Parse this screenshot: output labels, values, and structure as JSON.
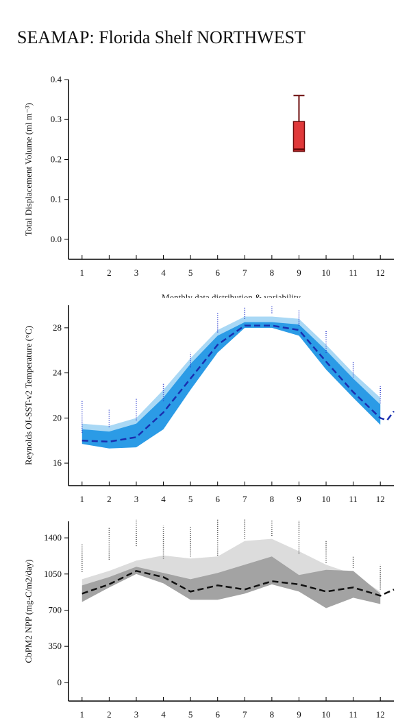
{
  "title": "SEAMAP: Florida Shelf NORTHWEST",
  "chart_data": [
    {
      "type": "box",
      "ylabel": "Total Displacement Volume (ml m⁻³)",
      "xlabel": "Monthly data distribution & variability",
      "xlim": [
        0.5,
        12.5
      ],
      "xticks": [
        1,
        2,
        3,
        4,
        5,
        6,
        7,
        8,
        9,
        10,
        11,
        12
      ],
      "ylim": [
        -0.05,
        0.4
      ],
      "yticks": [
        {
          "value": 0,
          "label": "0.0"
        },
        0.1,
        0.2,
        0.3,
        0.4
      ],
      "color": "#e0393a",
      "edge_color": "#6b0a0a",
      "boxes": [
        {
          "x": 9,
          "whisker_low": 0.22,
          "q1": 0.22,
          "median": 0.225,
          "q3": 0.295,
          "whisker_high": 0.36
        }
      ]
    },
    {
      "type": "band_line",
      "ylabel": "Reynolds OI-SST-v2 Temperature (°C)",
      "xlim": [
        0.5,
        12.5
      ],
      "xticks": [
        1,
        2,
        3,
        4,
        5,
        6,
        7,
        8,
        9,
        10,
        11,
        12
      ],
      "ylim": [
        14,
        30
      ],
      "yticks": [
        16,
        20,
        24,
        28
      ],
      "x": [
        1,
        2,
        3,
        4,
        5,
        6,
        7,
        8,
        9,
        10,
        11,
        12
      ],
      "bands": [
        {
          "color": "#a9d8f5",
          "lower": [
            17.8,
            17.4,
            17.5,
            19.2,
            22.6,
            25.9,
            28.0,
            28.0,
            27.4,
            24.4,
            21.9,
            19.5
          ],
          "upper": [
            19.5,
            19.3,
            20.0,
            22.5,
            25.3,
            27.8,
            29.0,
            29.0,
            28.8,
            26.5,
            24.0,
            21.8
          ]
        },
        {
          "color": "#2b9be6",
          "lower": [
            17.7,
            17.3,
            17.4,
            19.0,
            22.5,
            25.8,
            28.0,
            28.0,
            27.3,
            24.3,
            21.8,
            19.4
          ],
          "upper": [
            19.0,
            18.8,
            19.5,
            21.8,
            24.8,
            27.3,
            28.5,
            28.5,
            28.3,
            26.0,
            23.5,
            21.2
          ]
        }
      ],
      "line": {
        "color": "#1a2fb0",
        "x": [
          1,
          2,
          3,
          4,
          5,
          6,
          7,
          8,
          9,
          10,
          11,
          12,
          12.25,
          12.5
        ],
        "values": [
          18.0,
          17.9,
          18.3,
          20.5,
          23.5,
          26.5,
          28.2,
          28.2,
          27.8,
          25.0,
          22.3,
          20.0,
          19.8,
          20.6
        ]
      },
      "observations": {
        "color": "#2233cc",
        "low": [
          18.7,
          19.2,
          19.8,
          21.5,
          24.5,
          27.6,
          28.8,
          29.3,
          28.2,
          25.8,
          23.6,
          21.3
        ],
        "high": [
          21.5,
          20.8,
          21.7,
          23.1,
          25.8,
          29.3,
          29.8,
          29.9,
          29.6,
          27.8,
          25.0,
          22.8
        ]
      }
    },
    {
      "type": "band_line",
      "ylabel": "CbPM2 NPP (mg-C/m2/day)",
      "xlim": [
        0.5,
        12.5
      ],
      "xticks": [
        1,
        2,
        3,
        4,
        5,
        6,
        7,
        8,
        9,
        10,
        11,
        12
      ],
      "ylim": [
        -180,
        1560
      ],
      "yticks": [
        0,
        350,
        700,
        1050,
        1400
      ],
      "x": [
        1,
        2,
        3,
        4,
        5,
        6,
        7,
        8,
        9,
        10,
        11,
        12
      ],
      "bands": [
        {
          "color": "#dcdcdc",
          "lower": [
            780,
            920,
            1050,
            960,
            800,
            800,
            860,
            950,
            880,
            720,
            820,
            760
          ],
          "upper": [
            1000,
            1080,
            1180,
            1230,
            1200,
            1220,
            1370,
            1390,
            1270,
            1140,
            1050,
            880
          ]
        },
        {
          "color": "#a3a3a3",
          "lower": [
            780,
            920,
            1050,
            960,
            800,
            800,
            860,
            950,
            880,
            720,
            820,
            760
          ],
          "upper": [
            940,
            1020,
            1120,
            1060,
            1000,
            1060,
            1140,
            1220,
            1040,
            1090,
            1080,
            860
          ]
        }
      ],
      "line": {
        "color": "#111111",
        "x": [
          1,
          2,
          3,
          4,
          5,
          6,
          7,
          8,
          9,
          10,
          11,
          12,
          12.5
        ],
        "values": [
          860,
          950,
          1080,
          1020,
          880,
          940,
          900,
          980,
          950,
          880,
          920,
          840,
          900
        ]
      },
      "observations": {
        "color": "#333333",
        "low": [
          1070,
          1190,
          1320,
          1200,
          1220,
          1230,
          1390,
          1420,
          1250,
          1160,
          1110,
          900
        ],
        "high": [
          1340,
          1500,
          1580,
          1520,
          1510,
          1580,
          1580,
          1570,
          1570,
          1380,
          1230,
          1140
        ]
      }
    }
  ]
}
